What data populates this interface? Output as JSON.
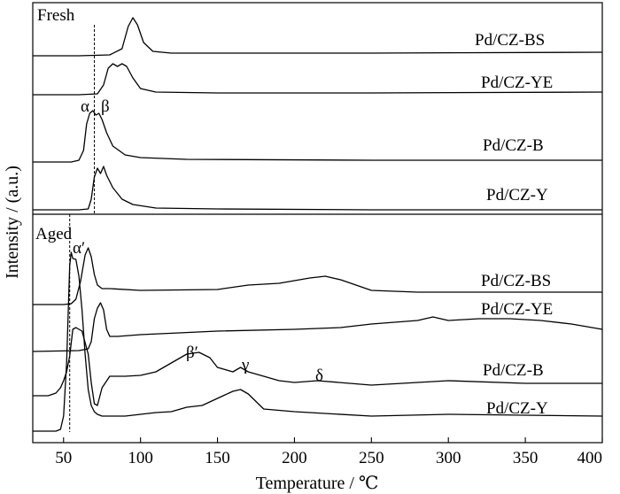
{
  "chart_data": [
    {
      "type": "line",
      "panel_label": "Fresh",
      "xlabel": "Temperature / ℃",
      "ylabel": "Intensity / (a.u.)",
      "xlim": [
        30,
        400
      ],
      "xticks": [
        50,
        100,
        150,
        200,
        250,
        300,
        350,
        400
      ],
      "y_scale": "arbitrary units, curves vertically offset",
      "grid": false,
      "reference_line_x": 70,
      "series": [
        {
          "name": "Pd/CZ-BS",
          "x": [
            30,
            60,
            80,
            88,
            92,
            95,
            98,
            102,
            108,
            120,
            150,
            250,
            400
          ],
          "y": [
            63,
            63,
            62,
            55,
            30,
            20,
            28,
            48,
            58,
            60,
            60,
            60,
            59
          ]
        },
        {
          "name": "Pd/CZ-YE",
          "x": [
            30,
            60,
            72,
            76,
            79,
            82,
            85,
            88,
            91,
            95,
            100,
            110,
            150,
            250,
            400
          ],
          "y": [
            107,
            107,
            106,
            96,
            77,
            72,
            75,
            72,
            75,
            88,
            100,
            104,
            105,
            105,
            104
          ]
        },
        {
          "name": "Pd/CZ-B",
          "x": [
            30,
            55,
            60,
            63,
            65,
            67,
            69,
            71,
            73,
            75,
            78,
            82,
            90,
            100,
            130,
            250,
            400
          ],
          "y": [
            183,
            183,
            181,
            170,
            140,
            128,
            125,
            130,
            128,
            135,
            150,
            165,
            175,
            178,
            180,
            181,
            181
          ]
        },
        {
          "name": "Pd/CZ-Y",
          "x": [
            30,
            60,
            66,
            68,
            70,
            72,
            74,
            76,
            78,
            82,
            88,
            95,
            110,
            150,
            250,
            400
          ],
          "y": [
            237,
            237,
            236,
            225,
            200,
            190,
            196,
            188,
            198,
            212,
            225,
            231,
            235,
            236,
            237,
            237
          ]
        }
      ],
      "annotations": [
        {
          "text": "α",
          "x": 60
        },
        {
          "text": "β",
          "x": 76
        }
      ]
    },
    {
      "type": "line",
      "panel_label": "Aged",
      "xlabel": "Temperature / ℃",
      "ylabel": "Intensity / (a.u.)",
      "xlim": [
        30,
        400
      ],
      "xticks": [
        50,
        100,
        150,
        200,
        250,
        300,
        350,
        400
      ],
      "y_scale": "arbitrary units, curves vertically offset",
      "grid": false,
      "reference_line_x": 54,
      "series": [
        {
          "name": "Pd/CZ-BS",
          "x": [
            30,
            50,
            55,
            58,
            61,
            64,
            66,
            68,
            70,
            72,
            75,
            80,
            100,
            150,
            170,
            190,
            210,
            220,
            230,
            250,
            280,
            300,
            400
          ],
          "y": [
            344,
            344,
            343,
            338,
            318,
            288,
            280,
            290,
            310,
            322,
            326,
            326,
            328,
            327,
            322,
            320,
            314,
            312,
            316,
            328,
            330,
            330,
            330
          ]
        },
        {
          "name": "Pd/CZ-YE",
          "x": [
            30,
            60,
            66,
            68,
            70,
            72,
            74,
            76,
            78,
            80,
            85,
            100,
            150,
            200,
            230,
            250,
            280,
            290,
            300,
            320,
            340,
            360,
            380,
            400
          ],
          "y": [
            397,
            396,
            394,
            386,
            360,
            348,
            342,
            350,
            372,
            380,
            380,
            378,
            374,
            372,
            370,
            366,
            362,
            358,
            362,
            360,
            360,
            362,
            366,
            372
          ]
        },
        {
          "name": "Pd/CZ-B",
          "x": [
            30,
            40,
            45,
            48,
            50,
            52,
            54,
            56,
            58,
            62,
            66,
            68,
            70,
            72,
            75,
            80,
            90,
            100,
            110,
            120,
            130,
            138,
            145,
            150,
            160,
            165,
            170,
            180,
            190,
            200,
            215,
            250,
            300,
            350,
            400
          ],
          "y": [
            447,
            447,
            444,
            438,
            430,
            420,
            402,
            372,
            370,
            374,
            400,
            432,
            456,
            458,
            438,
            425,
            425,
            424,
            420,
            410,
            400,
            398,
            404,
            415,
            420,
            415,
            420,
            425,
            430,
            432,
            430,
            435,
            430,
            433,
            433
          ]
        },
        {
          "name": "Pd/CZ-Y",
          "x": [
            30,
            45,
            48,
            50,
            52,
            54,
            55,
            56,
            58,
            60,
            62,
            64,
            66,
            68,
            70,
            72,
            75,
            80,
            90,
            100,
            110,
            120,
            130,
            140,
            150,
            160,
            165,
            170,
            180,
            200,
            250,
            300,
            400
          ],
          "y": [
            487,
            487,
            485,
            470,
            410,
            300,
            285,
            292,
            293,
            312,
            350,
            400,
            440,
            458,
            465,
            468,
            470,
            470,
            470,
            468,
            466,
            465,
            460,
            458,
            450,
            442,
            440,
            445,
            462,
            465,
            470,
            468,
            470
          ]
        }
      ],
      "annotations": [
        {
          "text": "α′",
          "x": 63
        },
        {
          "text": "β′",
          "x": 135
        },
        {
          "text": "γ",
          "x": 168
        },
        {
          "text": "δ",
          "x": 218
        }
      ]
    }
  ]
}
